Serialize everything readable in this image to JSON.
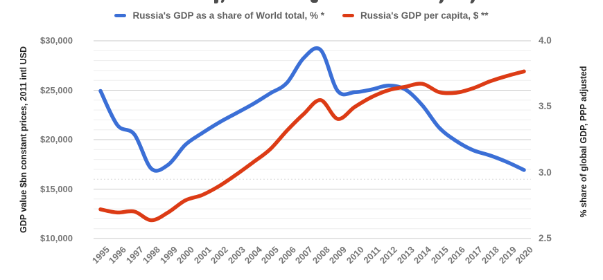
{
  "title_clipped": true,
  "legend": [
    {
      "label": "Russia's GDP as a share of World total, % *",
      "color": "#3b6fd6"
    },
    {
      "label": "Russia's GDP per capita, $ **",
      "color": "#dc3b15"
    }
  ],
  "left_axis": {
    "title": "GDP value $bn constant prices, 2011 intl USD",
    "min": 10000,
    "max": 30000,
    "major_step": 5000,
    "minor_step": 1000,
    "tick_values": [
      30000,
      25000,
      20000,
      15000,
      10000
    ],
    "tick_labels": [
      "$30,000",
      "$25,000",
      "$20,000",
      "$15,000",
      "$10,000"
    ],
    "dotted_minor_at": 16000
  },
  "right_axis": {
    "title": "% share of global GDP, PPP adjusted",
    "min": 2.5,
    "max": 4.0,
    "tick_values": [
      4.0,
      3.5,
      3.0,
      2.5
    ],
    "tick_labels": [
      "4.0",
      "3.5",
      "3.0",
      "2.5"
    ]
  },
  "chart_data": {
    "type": "line",
    "smooth": true,
    "legend_position": "top",
    "grid": "horizontal-major-and-minor",
    "x": [
      1995,
      1996,
      1997,
      1998,
      1999,
      2000,
      2001,
      2002,
      2003,
      2004,
      2005,
      2006,
      2007,
      2008,
      2009,
      2010,
      2011,
      2012,
      2013,
      2014,
      2015,
      2016,
      2017,
      2018,
      2019,
      2020
    ],
    "series": [
      {
        "name": "Russia's GDP as a share of World total, % *",
        "axis": "right",
        "color": "#3b6fd6",
        "values": [
          3.62,
          3.36,
          3.29,
          3.03,
          3.06,
          3.21,
          3.3,
          3.38,
          3.45,
          3.52,
          3.6,
          3.68,
          3.87,
          3.93,
          3.62,
          3.61,
          3.63,
          3.66,
          3.63,
          3.51,
          3.34,
          3.24,
          3.17,
          3.13,
          3.08,
          3.02
        ]
      },
      {
        "name": "Russia's GDP per capita, $ **",
        "axis": "left",
        "color": "#dc3b15",
        "values": [
          12950,
          12630,
          12730,
          11850,
          12650,
          13850,
          14400,
          15300,
          16450,
          17700,
          19000,
          20900,
          22600,
          24000,
          22100,
          23300,
          24300,
          25000,
          25350,
          25650,
          24800,
          24750,
          25200,
          25900,
          26450,
          26900
        ]
      }
    ]
  },
  "colors": {
    "series_blue": "#3b6fd6",
    "series_red": "#dc3b15",
    "major_grid": "#c9c9c9",
    "minor_grid": "#ededed",
    "dotted_grid": "#d8d8d8",
    "tick_text": "#757575",
    "legend_text": "#616161",
    "axis_title_text": "#1f1f1f"
  }
}
